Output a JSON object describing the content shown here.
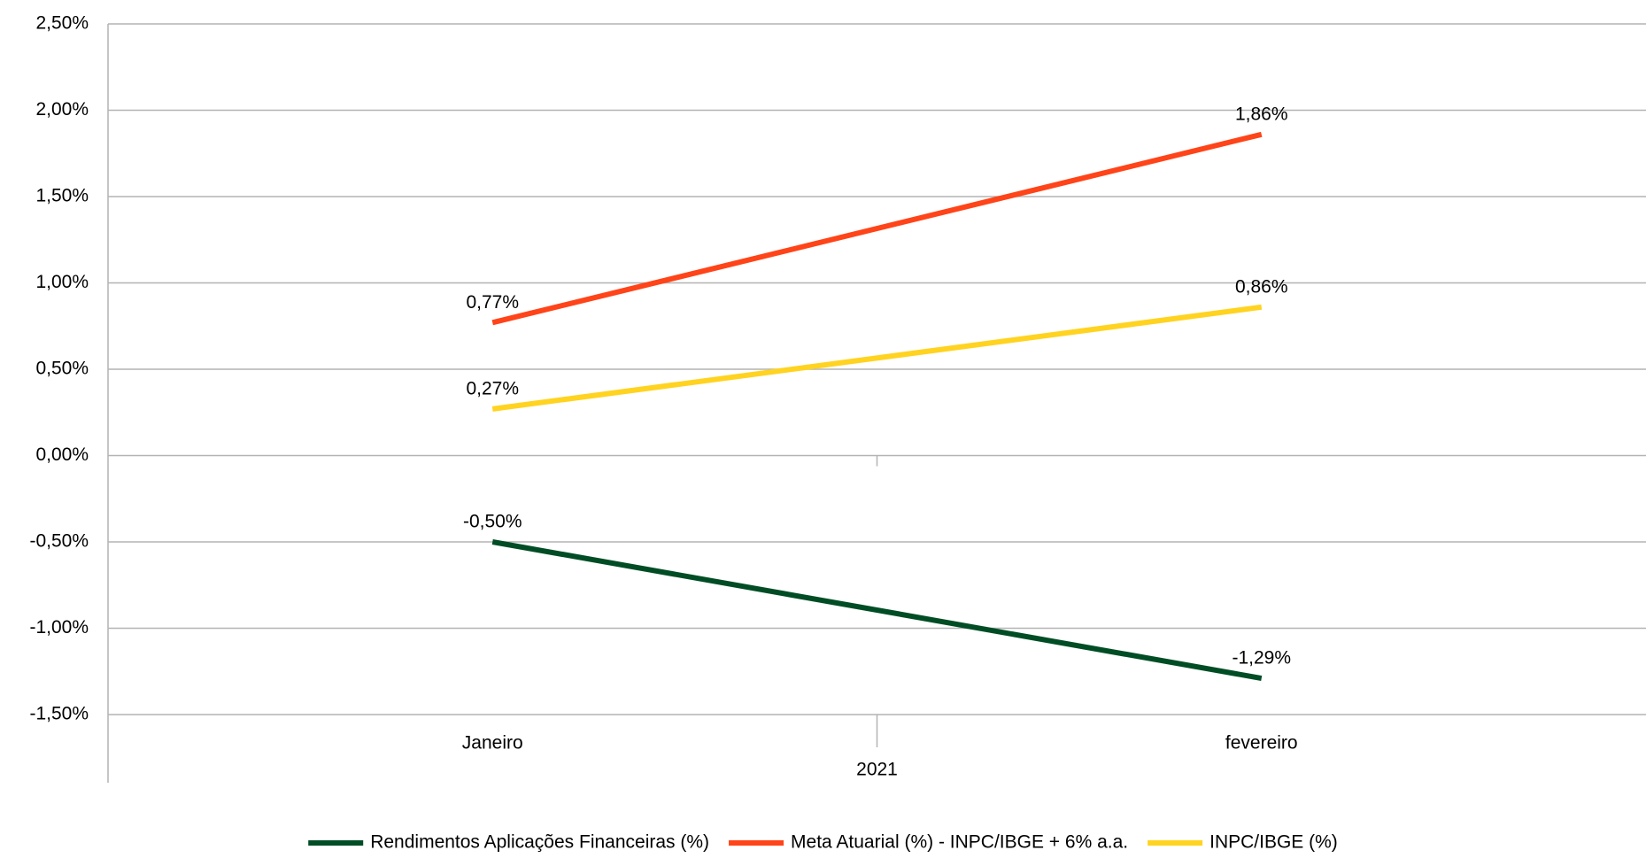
{
  "chart_data": {
    "type": "line",
    "categories": [
      "Janeiro",
      "fevereiro"
    ],
    "group": "2021",
    "series": [
      {
        "name": "Rendimentos Aplicações Financeiras (%)",
        "color": "#004d25",
        "values": [
          -0.5,
          -1.29
        ],
        "value_labels": [
          "-0,50%",
          "-1,29%"
        ]
      },
      {
        "name": "Meta Atuarial (%) - INPC/IBGE + 6% a.a.",
        "color": "#ff4419",
        "values": [
          0.77,
          1.86
        ],
        "value_labels": [
          "0,77%",
          "1,86%"
        ]
      },
      {
        "name": "INPC/IBGE (%)",
        "color": "#ffd320",
        "values": [
          0.27,
          0.86
        ],
        "value_labels": [
          "0,27%",
          "0,86%"
        ]
      }
    ],
    "ylim": [
      -1.5,
      2.5
    ],
    "yticks": [
      {
        "value": -1.5,
        "label": "-1,50%"
      },
      {
        "value": -1,
        "label": "-1,00%"
      },
      {
        "value": -0.5,
        "label": "-0,50%"
      },
      {
        "value": 0,
        "label": "0,00%"
      },
      {
        "value": 0.5,
        "label": "0,50%"
      },
      {
        "value": 1,
        "label": "1,00%"
      },
      {
        "value": 1.5,
        "label": "1,50%"
      },
      {
        "value": 2,
        "label": "2,00%"
      },
      {
        "value": 2.5,
        "label": "2,50%"
      }
    ],
    "grid": true,
    "legend": "bottom"
  }
}
